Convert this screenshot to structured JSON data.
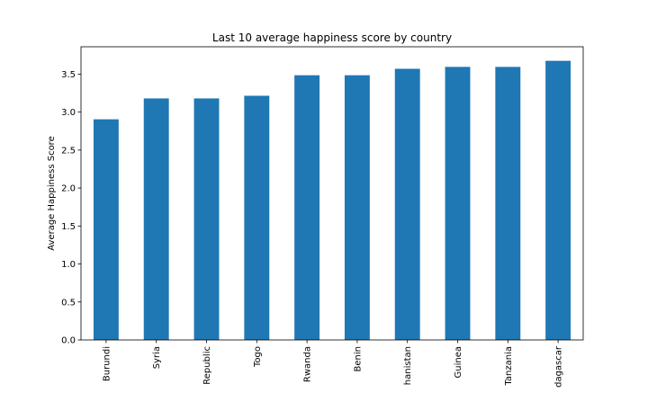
{
  "chart_data": {
    "type": "bar",
    "title": "Last 10 average happiness score by country",
    "xlabel": "",
    "ylabel": "Average Happiness Score",
    "categories": [
      "Burundi",
      "Syria",
      "Republic",
      "Togo",
      "Rwanda",
      "Benin",
      "hanistan",
      "Guinea",
      "Tanzania",
      "dagascar"
    ],
    "values": [
      2.905,
      3.18,
      3.18,
      3.215,
      3.485,
      3.485,
      3.57,
      3.595,
      3.595,
      3.675
    ],
    "ylim": [
      0,
      3.86
    ],
    "yticks": [
      0.0,
      0.5,
      1.0,
      1.5,
      2.0,
      2.5,
      3.0,
      3.5
    ],
    "ytick_labels": [
      "0.0",
      "0.5",
      "1.0",
      "1.5",
      "2.0",
      "2.5",
      "3.0",
      "3.5"
    ],
    "grid": false,
    "bar_color": "#1f77b4"
  }
}
